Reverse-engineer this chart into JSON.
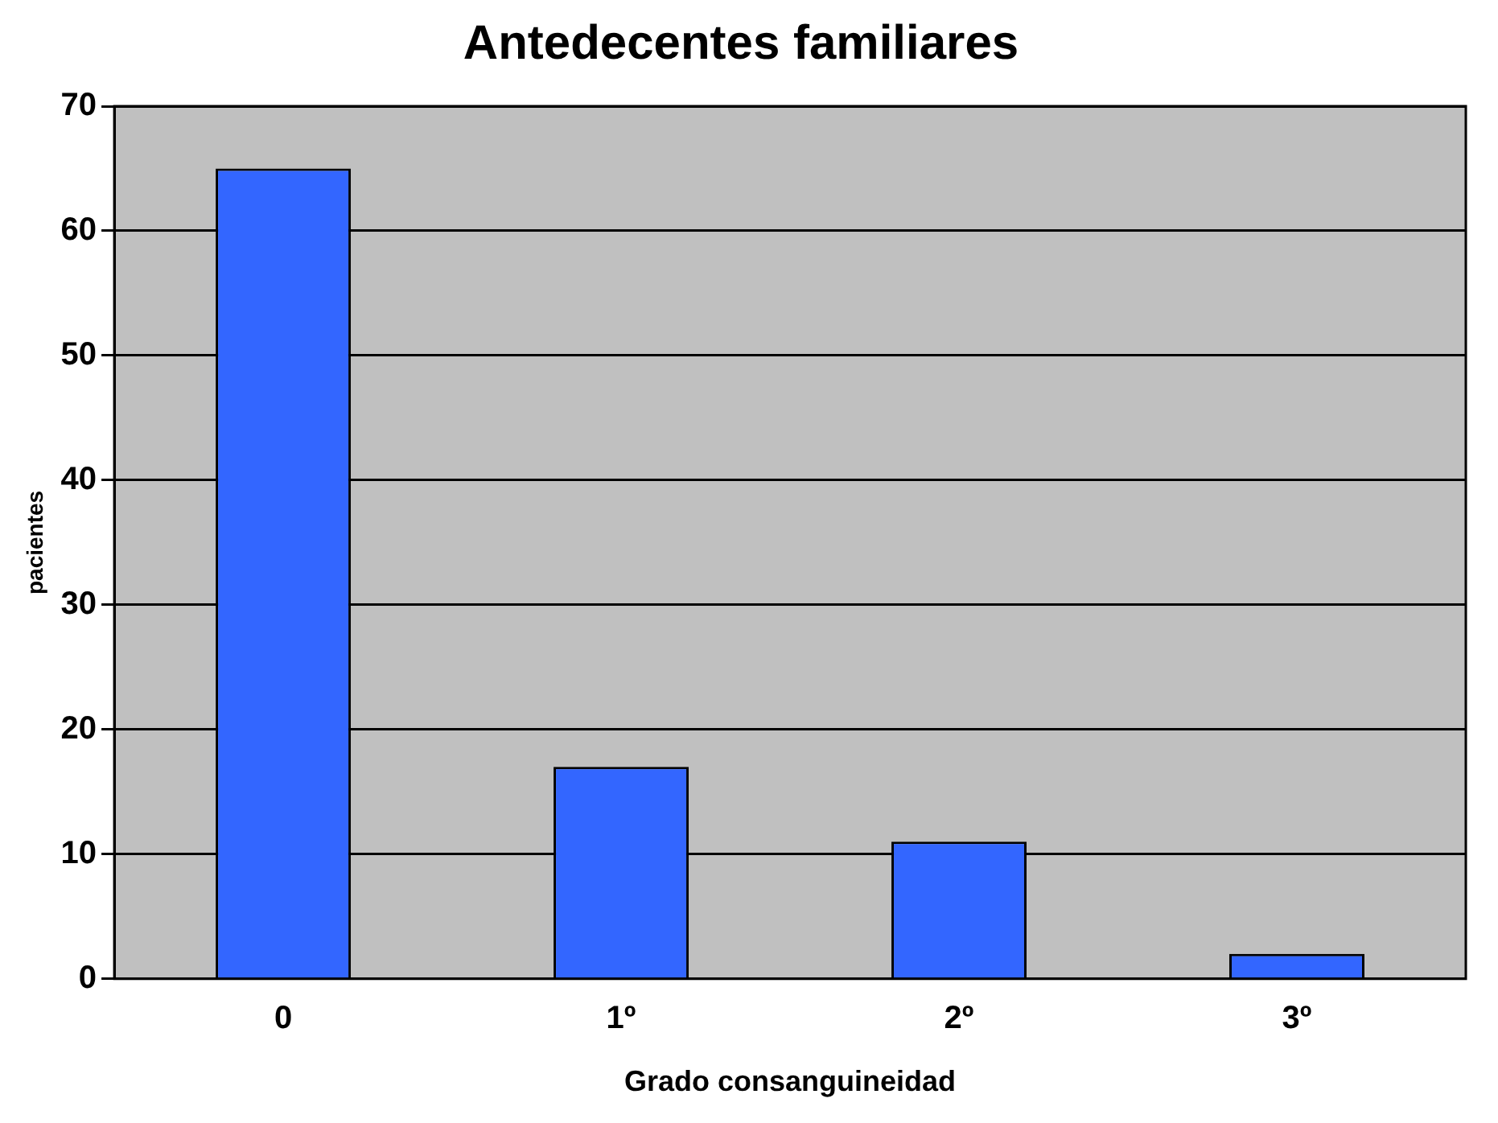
{
  "chart_data": {
    "type": "bar",
    "title": "Antedecentes familiares",
    "xlabel": "Grado consanguineidad",
    "ylabel": "pacientes",
    "categories": [
      "0",
      "1º",
      "2º",
      "3º"
    ],
    "values": [
      65,
      17,
      11,
      2
    ],
    "color": "#3366ff",
    "ylim": [
      0,
      70
    ],
    "yticks": [
      0,
      10,
      20,
      30,
      40,
      50,
      60,
      70
    ],
    "grid": "y",
    "legend": false
  }
}
